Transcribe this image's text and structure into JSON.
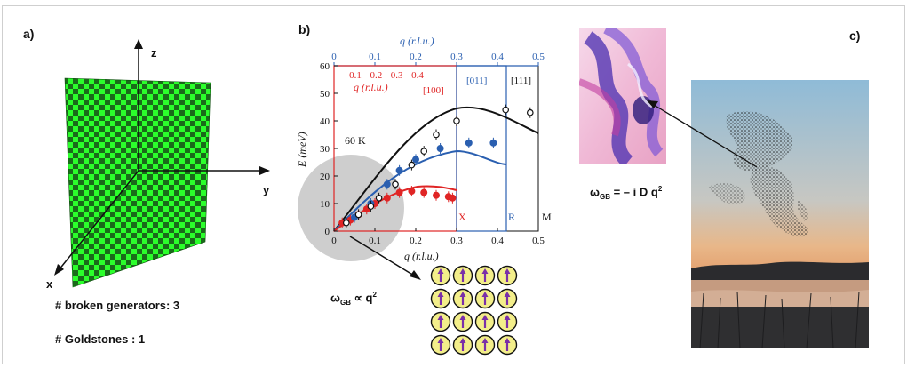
{
  "panels": {
    "a": "a)",
    "b": "b)",
    "c": "c)"
  },
  "panel_a": {
    "axes": {
      "x": "x",
      "y": "y",
      "z": "z"
    },
    "checker_colors": [
      "#1a6b1a",
      "#2bff2b"
    ],
    "broken_generators_label": "# broken generators: 3",
    "goldstones_label": "# Goldstones : 1"
  },
  "panel_b": {
    "equation_prefix": "ω",
    "equation_sub": "GB",
    "equation_rest": " ∝ q",
    "equation_sup": "2",
    "spin_grid": {
      "rows": 4,
      "cols": 4,
      "arrow_color": "#7a2fa8",
      "fill": "#f3ee8a"
    }
  },
  "panel_c": {
    "equation_prefix": "ω",
    "equation_sub": "GB",
    "equation_rest": " = – i D q",
    "equation_sup": "2"
  },
  "chart_data": {
    "type": "scatter",
    "ylabel": "E (meV)",
    "xlabel": "q (r.l.u.)",
    "top_axis_label": "q (r.l.u.)",
    "red_axis_label": "q (r.l.u.)",
    "temperature_label": "60 K",
    "xlim": [
      0,
      0.5
    ],
    "ylim": [
      0,
      60
    ],
    "x_ticks": [
      "0",
      "0.1",
      "0.2",
      "0.3",
      "0.4",
      "0.5"
    ],
    "y_ticks": [
      "0",
      "10",
      "20",
      "30",
      "40",
      "50",
      "60"
    ],
    "top_ticks": [
      "0",
      "0.1",
      "0.2",
      "0.3",
      "0.4",
      "0.5"
    ],
    "red_ticks": [
      "0.1",
      "0.2",
      "0.3",
      "0.4"
    ],
    "direction_labels": [
      "[100]",
      "[011]",
      "[111]"
    ],
    "zone_labels": [
      "X",
      "R",
      "M"
    ],
    "series": [
      {
        "name": "[100]",
        "color": "#e02525",
        "x": [
          0.02,
          0.04,
          0.06,
          0.08,
          0.1,
          0.13,
          0.16,
          0.19,
          0.22,
          0.25,
          0.28,
          0.29
        ],
        "y": [
          3,
          4,
          6,
          8,
          10,
          12,
          14,
          14.5,
          14,
          13,
          12.5,
          12
        ]
      },
      {
        "name": "[011]",
        "color": "#2a5fb0",
        "x": [
          0.05,
          0.09,
          0.13,
          0.16,
          0.2,
          0.26,
          0.33,
          0.39
        ],
        "y": [
          5,
          10,
          17,
          22,
          26,
          30,
          32,
          32
        ]
      },
      {
        "name": "[111]",
        "color": "#111111",
        "x": [
          0.03,
          0.06,
          0.09,
          0.11,
          0.15,
          0.19,
          0.22,
          0.25,
          0.3,
          0.42,
          0.48
        ],
        "y": [
          3,
          6,
          9,
          12,
          17,
          24,
          29,
          35,
          40,
          44,
          43
        ]
      }
    ]
  }
}
